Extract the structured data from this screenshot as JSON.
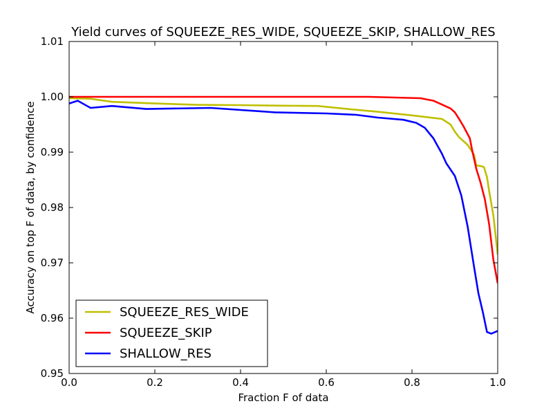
{
  "chart_data": {
    "type": "line",
    "title": "Yield curves of SQUEEZE_RES_WIDE, SQUEEZE_SKIP, SHALLOW_RES",
    "xlabel": "Fraction F of data",
    "ylabel": "Accuracy on top F of data, by confidence",
    "xlim": [
      0.0,
      1.0
    ],
    "ylim": [
      0.95,
      1.01
    ],
    "xticks": [
      0.0,
      0.2,
      0.4,
      0.6,
      0.8,
      1.0
    ],
    "xtick_labels": [
      "0.0",
      "0.2",
      "0.4",
      "0.6",
      "0.8",
      "1.0"
    ],
    "yticks": [
      0.95,
      0.96,
      0.97,
      0.98,
      0.99,
      1.0,
      1.01
    ],
    "ytick_labels": [
      "0.95",
      "0.96",
      "0.97",
      "0.98",
      "0.99",
      "1.00",
      "1.01"
    ],
    "grid": false,
    "legend_position": "lower-left",
    "series": [
      {
        "name": "SQUEEZE_RES_WIDE",
        "color": "#bfbf00",
        "points": [
          [
            0.0,
            0.99975
          ],
          [
            0.05,
            0.99965
          ],
          [
            0.1,
            0.9991
          ],
          [
            0.2,
            0.9988
          ],
          [
            0.3,
            0.99855
          ],
          [
            0.4,
            0.9985
          ],
          [
            0.5,
            0.9984
          ],
          [
            0.58,
            0.99835
          ],
          [
            0.65,
            0.9978
          ],
          [
            0.72,
            0.9973
          ],
          [
            0.8,
            0.99665
          ],
          [
            0.87,
            0.996
          ],
          [
            0.89,
            0.995
          ],
          [
            0.9,
            0.9937
          ],
          [
            0.91,
            0.9927
          ],
          [
            0.93,
            0.9913
          ],
          [
            0.945,
            0.9895
          ],
          [
            0.95,
            0.9876
          ],
          [
            0.96,
            0.9875
          ],
          [
            0.968,
            0.9873
          ],
          [
            0.975,
            0.9855
          ],
          [
            0.98,
            0.983
          ],
          [
            0.99,
            0.9785
          ],
          [
            1.0,
            0.9715
          ]
        ]
      },
      {
        "name": "SQUEEZE_SKIP",
        "color": "#ff0000",
        "points": [
          [
            0.0,
            1.0
          ],
          [
            0.1,
            1.0
          ],
          [
            0.3,
            1.0
          ],
          [
            0.5,
            1.0
          ],
          [
            0.6,
            1.0
          ],
          [
            0.7,
            1.0
          ],
          [
            0.82,
            0.99975
          ],
          [
            0.85,
            0.9993
          ],
          [
            0.87,
            0.9986
          ],
          [
            0.89,
            0.9979
          ],
          [
            0.9,
            0.9972
          ],
          [
            0.91,
            0.996
          ],
          [
            0.92,
            0.9947
          ],
          [
            0.935,
            0.9925
          ],
          [
            0.94,
            0.9905
          ],
          [
            0.95,
            0.987
          ],
          [
            0.96,
            0.9845
          ],
          [
            0.97,
            0.9815
          ],
          [
            0.98,
            0.977
          ],
          [
            0.99,
            0.9705
          ],
          [
            1.0,
            0.9663
          ]
        ]
      },
      {
        "name": "SHALLOW_RES",
        "color": "#0000ff",
        "points": [
          [
            0.0,
            0.9988
          ],
          [
            0.02,
            0.9993
          ],
          [
            0.05,
            0.998
          ],
          [
            0.1,
            0.99835
          ],
          [
            0.18,
            0.9978
          ],
          [
            0.33,
            0.998
          ],
          [
            0.48,
            0.9972
          ],
          [
            0.6,
            0.997
          ],
          [
            0.67,
            0.99675
          ],
          [
            0.72,
            0.99625
          ],
          [
            0.78,
            0.99585
          ],
          [
            0.81,
            0.9953
          ],
          [
            0.83,
            0.9944
          ],
          [
            0.85,
            0.9925
          ],
          [
            0.87,
            0.9897
          ],
          [
            0.88,
            0.988
          ],
          [
            0.9,
            0.9857
          ],
          [
            0.915,
            0.9822
          ],
          [
            0.93,
            0.9765
          ],
          [
            0.945,
            0.9692
          ],
          [
            0.955,
            0.9645
          ],
          [
            0.965,
            0.9612
          ],
          [
            0.975,
            0.9575
          ],
          [
            0.985,
            0.9572
          ],
          [
            1.0,
            0.9577
          ]
        ]
      }
    ]
  }
}
